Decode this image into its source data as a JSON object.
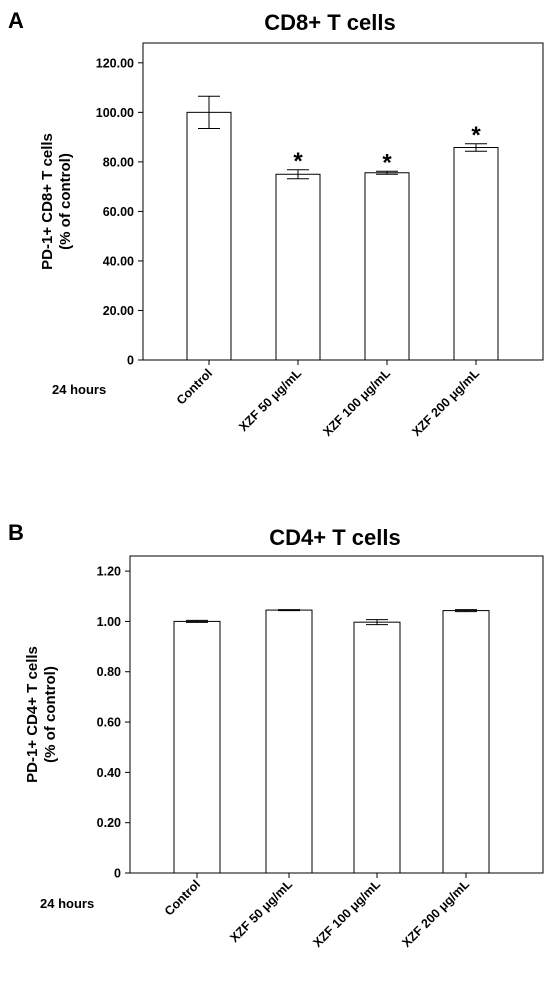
{
  "chart_data": [
    {
      "type": "bar",
      "panel": "A",
      "title": "CD8+ T cells",
      "ylabel_lines": [
        "PD-1+ CD8+ T cells",
        "(% of control)"
      ],
      "x_prefix_label": "24 hours",
      "categories": [
        "Control",
        "XZF 50  μg/mL",
        "XZF 100  μg/mL",
        "XZF 200  μg/mL"
      ],
      "values": [
        100.0,
        75.0,
        75.6,
        85.8
      ],
      "error": [
        6.5,
        1.8,
        0.6,
        1.5
      ],
      "significance": [
        "",
        "*",
        "*",
        "*"
      ],
      "ylim": [
        0,
        128
      ],
      "yticks": [
        0,
        20,
        40,
        60,
        80,
        100,
        120
      ],
      "ytick_labels": [
        "0",
        "20.00",
        "40.00",
        "60.00",
        "80.00",
        "100.00",
        "120.00"
      ],
      "grid": false
    },
    {
      "type": "bar",
      "panel": "B",
      "title": "CD4+ T cells",
      "ylabel_lines": [
        "PD-1+ CD4+ T cells",
        "(% of control)"
      ],
      "x_prefix_label": "24 hours",
      "categories": [
        "Control",
        "XZF 50  μg/mL",
        "XZF 100  μg/mL",
        "XZF 200  μg/mL"
      ],
      "values": [
        1.0,
        1.045,
        0.997,
        1.043
      ],
      "error": [
        0.004,
        0.002,
        0.01,
        0.004
      ],
      "significance": [
        "",
        "",
        "",
        ""
      ],
      "ylim": [
        0,
        1.26
      ],
      "yticks": [
        0,
        0.2,
        0.4,
        0.6,
        0.8,
        1.0,
        1.2
      ],
      "ytick_labels": [
        "0",
        "0.20",
        "0.40",
        "0.60",
        "0.80",
        "1.00",
        "1.20"
      ],
      "grid": false
    }
  ]
}
